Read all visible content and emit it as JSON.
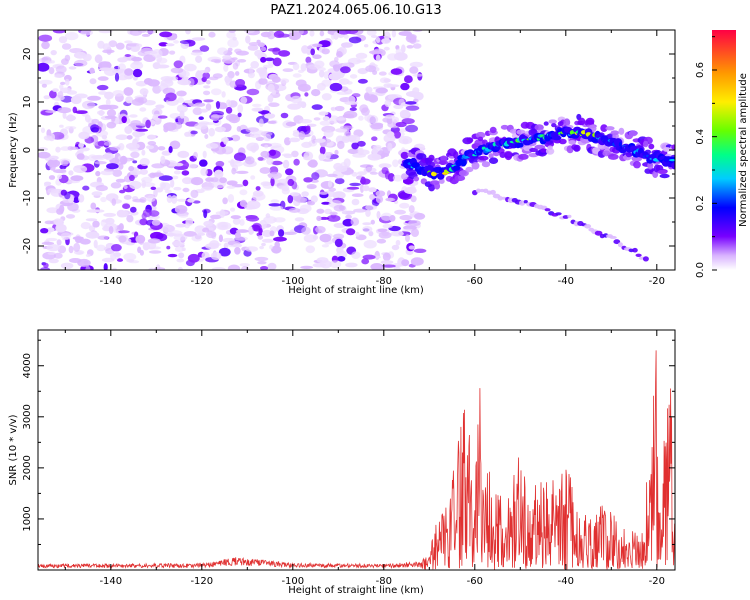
{
  "title": "PAZ1.2024.065.06.10.G13",
  "chart_data": [
    {
      "type": "heatmap",
      "xlabel": "Height of straight line (km)",
      "ylabel": "Frequency (Hz)",
      "xlim": [
        -156,
        -16
      ],
      "ylim": [
        -25,
        25
      ],
      "xticks": [
        "-140",
        "-120",
        "-100",
        "-80",
        "-60",
        "-40",
        "-20"
      ],
      "yticks": [
        "-20",
        "-10",
        "0",
        "10",
        "20"
      ],
      "ridge": {
        "x": [
          -75,
          -72,
          -70,
          -67,
          -64,
          -61,
          -58,
          -55,
          -52,
          -49,
          -46,
          -43,
          -40,
          -37,
          -34,
          -31,
          -28,
          -25,
          -22,
          -19,
          -16
        ],
        "y": [
          -3,
          -3.5,
          -4.5,
          -5,
          -3,
          -1,
          0,
          1,
          1.5,
          2,
          2.5,
          3,
          3.5,
          3.5,
          3,
          2,
          1,
          0,
          -1.5,
          -2,
          -2.5
        ],
        "amplitude": [
          0.25,
          0.3,
          0.45,
          0.6,
          0.3,
          0.28,
          0.32,
          0.3,
          0.35,
          0.45,
          0.38,
          0.3,
          0.42,
          0.5,
          0.48,
          0.38,
          0.3,
          0.25,
          0.22,
          0.28,
          0.25
        ]
      },
      "secondary_band": {
        "x": [
          -60,
          -55,
          -50,
          -45,
          -40,
          -35,
          -30,
          -25,
          -22
        ],
        "y": [
          -8.5,
          -9.5,
          -10.5,
          -12,
          -14,
          -16,
          -18.5,
          -21,
          -23
        ]
      },
      "noise_region": {
        "x_range": [
          -155,
          -72
        ],
        "amplitude": 0.1
      }
    },
    {
      "type": "colorbar",
      "label": "Normalized spectral amplitude",
      "range": [
        0.0,
        0.72
      ],
      "ticks": [
        "0.0",
        "0.2",
        "0.4",
        "0.6"
      ],
      "colormap": [
        "#ffffff",
        "#cc99ff",
        "#7700ff",
        "#0000ff",
        "#00ccff",
        "#00ff88",
        "#66ff00",
        "#ffee00",
        "#ff9900",
        "#ff0044"
      ]
    },
    {
      "type": "line",
      "xlabel": "Height of straight line (km)",
      "ylabel": "SNR (10 * v/v)",
      "xlim": [
        -156,
        -16
      ],
      "ylim": [
        0,
        4700
      ],
      "xticks": [
        "-140",
        "-120",
        "-100",
        "-80",
        "-60",
        "-40",
        "-20"
      ],
      "yticks": [
        "1000",
        "2000",
        "3000",
        "4000"
      ],
      "color": "#e03030",
      "envelope": {
        "x": [
          -156,
          -140,
          -120,
          -112,
          -100,
          -80,
          -72,
          -70,
          -68,
          -66,
          -64,
          -62,
          -60,
          -59,
          -58,
          -56,
          -54,
          -52,
          -50,
          -48,
          -46,
          -44,
          -42,
          -40,
          -38,
          -36,
          -34,
          -32,
          -30,
          -28,
          -26,
          -24,
          -22,
          -21,
          -20,
          -19,
          -18,
          -17,
          -16
        ],
        "y": [
          120,
          120,
          130,
          260,
          130,
          120,
          170,
          300,
          1200,
          1400,
          2300,
          3400,
          1700,
          4000,
          1600,
          2200,
          1300,
          1800,
          2500,
          1200,
          2000,
          1700,
          1800,
          2200,
          1400,
          1100,
          900,
          1400,
          1200,
          800,
          900,
          650,
          1800,
          2900,
          4700,
          2500,
          3200,
          3800,
          3000
        ]
      }
    }
  ]
}
